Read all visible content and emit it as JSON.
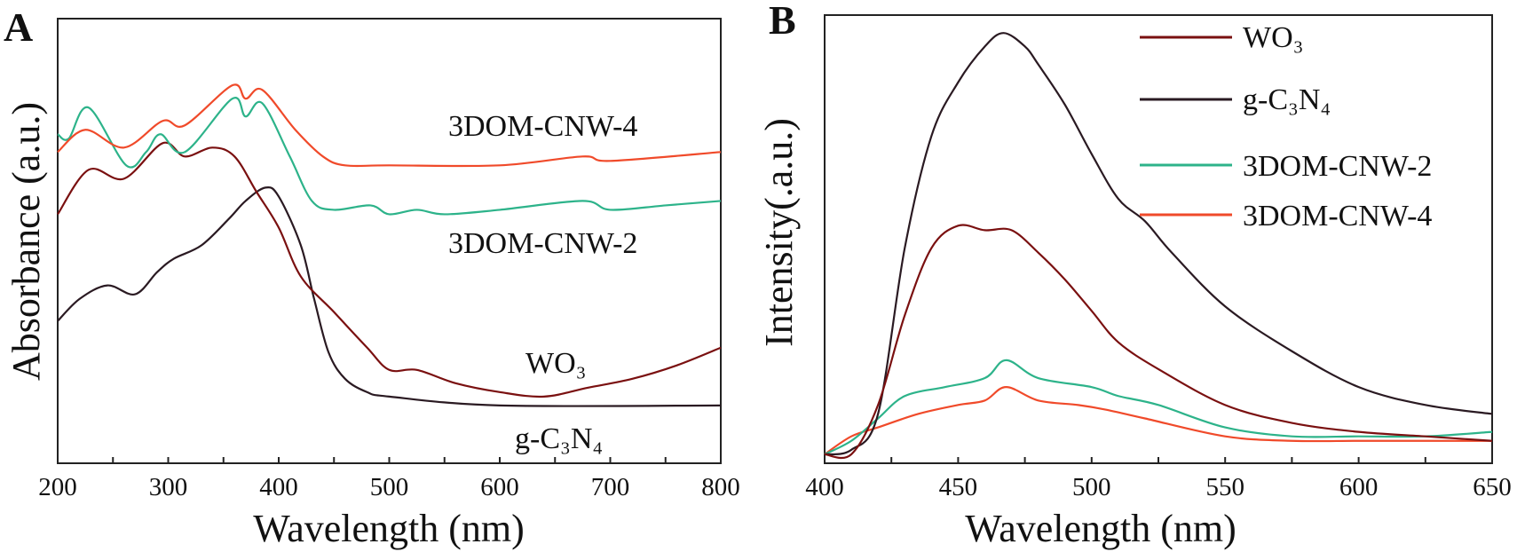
{
  "chart_data": [
    {
      "panel_label": "A",
      "type": "line",
      "xlabel": "Wavelength (nm)",
      "ylabel": "Absorbance (a.u.)",
      "xlim": [
        200,
        800
      ],
      "ylim": [
        0,
        1
      ],
      "xticks": [
        200,
        300,
        400,
        500,
        600,
        700,
        800
      ],
      "grid": false,
      "legend": "inline labels",
      "series": [
        {
          "name": "3DOM-CNW-4",
          "color": "#f04a2a",
          "x": [
            200,
            225,
            260,
            295,
            315,
            358,
            370,
            385,
            415,
            440,
            460,
            500,
            600,
            675,
            700,
            800
          ],
          "y": [
            0.7,
            0.75,
            0.71,
            0.77,
            0.76,
            0.85,
            0.82,
            0.84,
            0.75,
            0.69,
            0.67,
            0.67,
            0.67,
            0.69,
            0.68,
            0.7
          ]
        },
        {
          "name": "3DOM-CNW-2",
          "color": "#2db38a",
          "x": [
            200,
            210,
            228,
            262,
            280,
            293,
            315,
            358,
            370,
            385,
            410,
            430,
            450,
            483,
            500,
            525,
            550,
            600,
            675,
            700,
            750,
            800
          ],
          "y": [
            0.74,
            0.73,
            0.8,
            0.67,
            0.7,
            0.74,
            0.7,
            0.82,
            0.78,
            0.81,
            0.69,
            0.59,
            0.57,
            0.58,
            0.56,
            0.57,
            0.56,
            0.57,
            0.59,
            0.57,
            0.58,
            0.59
          ]
        },
        {
          "name": "WO₃",
          "color": "#7a1010",
          "x": [
            200,
            228,
            260,
            295,
            315,
            340,
            360,
            380,
            400,
            420,
            450,
            480,
            500,
            525,
            560,
            600,
            640,
            680,
            720,
            760,
            800
          ],
          "y": [
            0.56,
            0.66,
            0.64,
            0.72,
            0.69,
            0.71,
            0.69,
            0.61,
            0.53,
            0.42,
            0.34,
            0.26,
            0.21,
            0.21,
            0.18,
            0.16,
            0.15,
            0.17,
            0.19,
            0.22,
            0.26
          ]
        },
        {
          "name": "g-C₃N₄",
          "color": "#2a1a22",
          "x": [
            200,
            220,
            245,
            270,
            290,
            305,
            330,
            355,
            370,
            388,
            400,
            420,
            432,
            445,
            460,
            480,
            500,
            600,
            800
          ],
          "y": [
            0.32,
            0.37,
            0.4,
            0.38,
            0.43,
            0.46,
            0.49,
            0.55,
            0.59,
            0.62,
            0.6,
            0.49,
            0.37,
            0.25,
            0.19,
            0.16,
            0.15,
            0.13,
            0.13
          ]
        }
      ]
    },
    {
      "panel_label": "B",
      "type": "line",
      "xlabel": "Wavelength (nm)",
      "ylabel": "Intensity(.a.u.)",
      "xlim": [
        400,
        650
      ],
      "ylim": [
        0,
        1
      ],
      "xticks": [
        400,
        450,
        500,
        550,
        600,
        650
      ],
      "grid": false,
      "legend": "top-right",
      "series": [
        {
          "name": "WO₃",
          "color": "#7a1010",
          "x": [
            400,
            410,
            420,
            430,
            440,
            450,
            460,
            470,
            480,
            490,
            500,
            510,
            525,
            550,
            575,
            600,
            625,
            650
          ],
          "y": [
            0.02,
            0.02,
            0.13,
            0.33,
            0.48,
            0.53,
            0.52,
            0.52,
            0.47,
            0.41,
            0.34,
            0.27,
            0.21,
            0.13,
            0.09,
            0.07,
            0.06,
            0.05
          ]
        },
        {
          "name": "g-C₃N₄",
          "color": "#2a1a22",
          "x": [
            400,
            410,
            420,
            430,
            440,
            450,
            460,
            467,
            475,
            480,
            490,
            500,
            510,
            520,
            530,
            550,
            575,
            600,
            625,
            650
          ],
          "y": [
            0.02,
            0.03,
            0.11,
            0.48,
            0.73,
            0.85,
            0.93,
            0.96,
            0.93,
            0.89,
            0.8,
            0.69,
            0.59,
            0.54,
            0.47,
            0.35,
            0.25,
            0.17,
            0.13,
            0.11
          ]
        },
        {
          "name": "3DOM-CNW-2",
          "color": "#2db38a",
          "x": [
            400,
            410,
            420,
            430,
            445,
            460,
            468,
            480,
            500,
            510,
            525,
            550,
            575,
            600,
            625,
            650
          ],
          "y": [
            0.02,
            0.05,
            0.1,
            0.15,
            0.17,
            0.19,
            0.23,
            0.19,
            0.17,
            0.15,
            0.13,
            0.08,
            0.06,
            0.06,
            0.06,
            0.07
          ]
        },
        {
          "name": "3DOM-CNW-4",
          "color": "#f04a2a",
          "x": [
            400,
            410,
            420,
            435,
            450,
            460,
            468,
            480,
            495,
            505,
            520,
            550,
            575,
            600,
            625,
            650
          ],
          "y": [
            0.02,
            0.06,
            0.08,
            0.11,
            0.13,
            0.14,
            0.17,
            0.14,
            0.13,
            0.12,
            0.1,
            0.06,
            0.05,
            0.05,
            0.05,
            0.05
          ]
        }
      ]
    }
  ]
}
